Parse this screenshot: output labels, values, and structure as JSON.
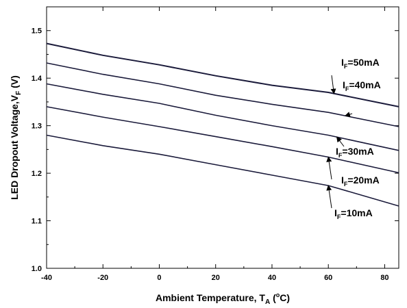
{
  "chart_data": {
    "type": "line",
    "xlabel_main": "Ambient Temperature, T",
    "xlabel_sub": "A",
    "xlabel_unit_open": " (",
    "xlabel_unit_sup": "o",
    "xlabel_unit_close": "C)",
    "ylabel_main": "LED Dropout Voltage,V",
    "ylabel_sub": "F",
    "ylabel_unit": " (V)",
    "xlim": [
      -40,
      85
    ],
    "ylim": [
      1.0,
      1.55
    ],
    "x_ticks": [
      -40,
      -20,
      0,
      20,
      40,
      60,
      80
    ],
    "x_tick_labels": [
      "-40",
      "-20",
      "0",
      "20",
      "40",
      "60",
      "80"
    ],
    "y_ticks": [
      1.0,
      1.1,
      1.2,
      1.3,
      1.4,
      1.5
    ],
    "y_tick_labels": [
      "1.0",
      "1.1",
      "1.2",
      "1.3",
      "1.4",
      "1.5"
    ],
    "grid": false,
    "line_color": "#1a1a3a",
    "x": [
      -40,
      -20,
      0,
      20,
      40,
      60,
      85
    ],
    "series": [
      {
        "label_main": "I",
        "label_sub": "F",
        "label_rest": "=50mA",
        "values": [
          1.473,
          1.448,
          1.428,
          1.405,
          1.385,
          1.37,
          1.34
        ]
      },
      {
        "label_main": "I",
        "label_sub": "F",
        "label_rest": "=40mA",
        "values": [
          1.432,
          1.408,
          1.388,
          1.364,
          1.345,
          1.328,
          1.298
        ]
      },
      {
        "label_main": "I",
        "label_sub": "F",
        "label_rest": "=30mA",
        "values": [
          1.388,
          1.366,
          1.347,
          1.322,
          1.3,
          1.28,
          1.248
        ]
      },
      {
        "label_main": "I",
        "label_sub": "F",
        "label_rest": "=20mA",
        "values": [
          1.34,
          1.318,
          1.298,
          1.277,
          1.256,
          1.234,
          1.201
        ]
      },
      {
        "label_main": "I",
        "label_sub": "F",
        "label_rest": "=10mA",
        "values": [
          1.28,
          1.258,
          1.24,
          1.218,
          1.196,
          1.174,
          1.131
        ]
      }
    ],
    "annotations": [
      {
        "series": 0,
        "arrow_to_x": 62
      },
      {
        "series": 1,
        "arrow_to_x": 66
      },
      {
        "series": 2,
        "arrow_to_x": 63
      },
      {
        "series": 3,
        "arrow_to_x": 60
      },
      {
        "series": 4,
        "arrow_to_x": 60
      }
    ]
  }
}
